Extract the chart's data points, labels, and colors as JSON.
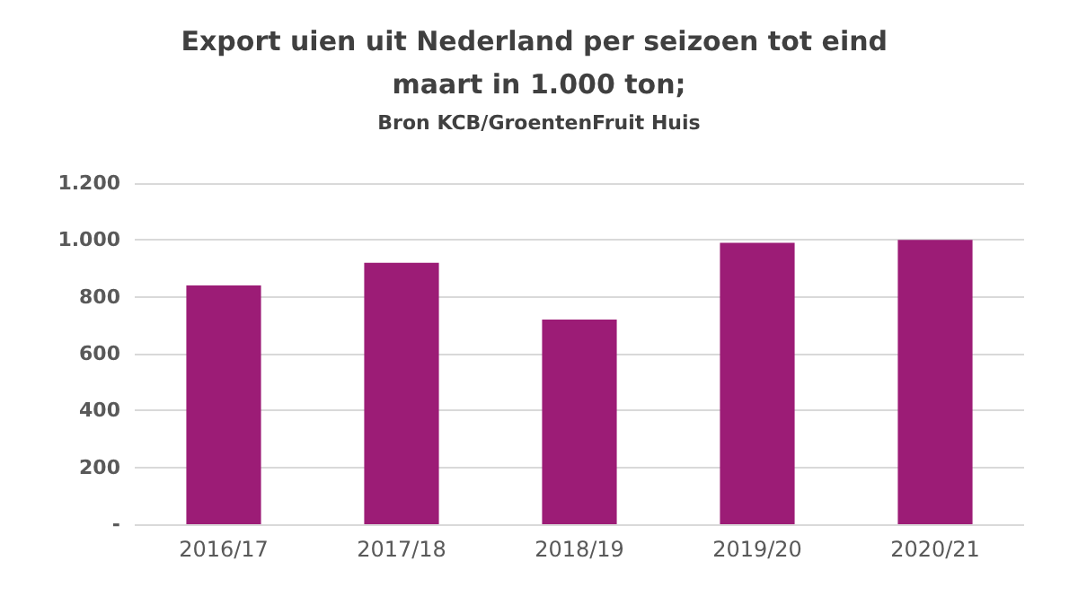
{
  "chart_data": {
    "type": "bar",
    "title": "Export uien uit Nederland per seizoen tot eind maart in 1.000 ton;",
    "subtitle": "Bron KCB/GroentenFruit Huis",
    "categories": [
      "2016/17",
      "2017/18",
      "2018/19",
      "2019/20",
      "2020/21"
    ],
    "values": [
      840,
      920,
      720,
      990,
      1000
    ],
    "color": "#9c1c76",
    "ylim": [
      0,
      1200
    ],
    "yticks": [
      {
        "value": 0,
        "label": "-"
      },
      200,
      400,
      600,
      800,
      {
        "value": 1000,
        "label": "1.000"
      },
      {
        "value": 1200,
        "label": "1.200"
      }
    ],
    "grid": "y"
  }
}
